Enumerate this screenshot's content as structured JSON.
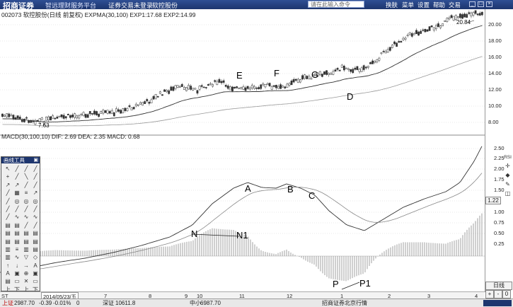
{
  "titlebar": {
    "logo": "招商证券",
    "tagline": "智远理财服务平台",
    "menu_a": "证券交易未登录",
    "menu_b": "软控股份",
    "command_placeholder": "请在此输入命令",
    "nav": [
      "换肤",
      "菜单",
      "设置",
      "帮助",
      "交易"
    ]
  },
  "price_panel": {
    "header": "002073 软控股份(日线 前复权) EXPMA(30,100) EXP1:17.68 EXP2:14.99",
    "high_label": "20.84",
    "low_label": "7.63",
    "annotations": [
      "E",
      "F",
      "G",
      "D"
    ],
    "ticks": [
      "20.00",
      "18.00",
      "16.00",
      "14.00",
      "12.00",
      "10.00",
      "8.00"
    ]
  },
  "macd_panel": {
    "header": "MACD(30,100,10) DIF: 2.69 DEA: 2.35 MACD: 0.68",
    "annotations": [
      "A",
      "B",
      "C",
      "N",
      "N1",
      "P",
      "P1"
    ],
    "ticks": [
      "2.50",
      "2.25",
      "2.00",
      "1.75",
      "1.50",
      "1.22",
      "1.00",
      "0.75",
      "0.50",
      "0.25"
    ]
  },
  "date_axis": {
    "start": "2014/05/23/五",
    "months": [
      "7",
      "8",
      "9",
      "10",
      "11",
      "12",
      "1",
      "2",
      "3",
      "4"
    ],
    "period": "日线"
  },
  "tools": {
    "title": "画线工具",
    "cells": [
      "↖",
      "╱",
      "╱",
      "╱",
      "+",
      "╱",
      "╲",
      "╱",
      "↗",
      "↗",
      "╱",
      "╱",
      "╱",
      "▦",
      "≡",
      "↗",
      "╱",
      "◎",
      "◎",
      "◎",
      "╱",
      "╱",
      "╱",
      "╱",
      "╱",
      "∿",
      "∿",
      "∿",
      "▤",
      "▤",
      "╱",
      "╱",
      "▤",
      "▤",
      "▤",
      "▤",
      "▤",
      "▤",
      "▤",
      "▤",
      "▥",
      "≡",
      "▥",
      "▤",
      "▥",
      "∿",
      "▽",
      "◇",
      "↑",
      "↓",
      "→",
      "A",
      "A",
      "▣",
      "⊕",
      "▣",
      "▤",
      "▭",
      "✕",
      "▭",
      "上",
      "下",
      "上",
      "下",
      "上",
      "下",
      "平",
      "平"
    ]
  },
  "right_icons": [
    "RSI",
    "✛",
    "◆",
    "✎",
    "◫"
  ],
  "statusbar": {
    "sh_label": "上证",
    "sh_value": "2987.70",
    "sh_change": "-0.39",
    "sh_pct": "-0.01%",
    "sh_vol": "0",
    "sz_label": "深证",
    "sz_value": "10611.8",
    "zx_label": "中小",
    "zx_value": "6987.70",
    "tip": "招商证券北京行情"
  },
  "colors": {
    "titlebar": "#1d356e",
    "candle": "#333333",
    "exp1": "#333333",
    "exp2": "#999999",
    "grid": "#c8c8c8"
  }
}
